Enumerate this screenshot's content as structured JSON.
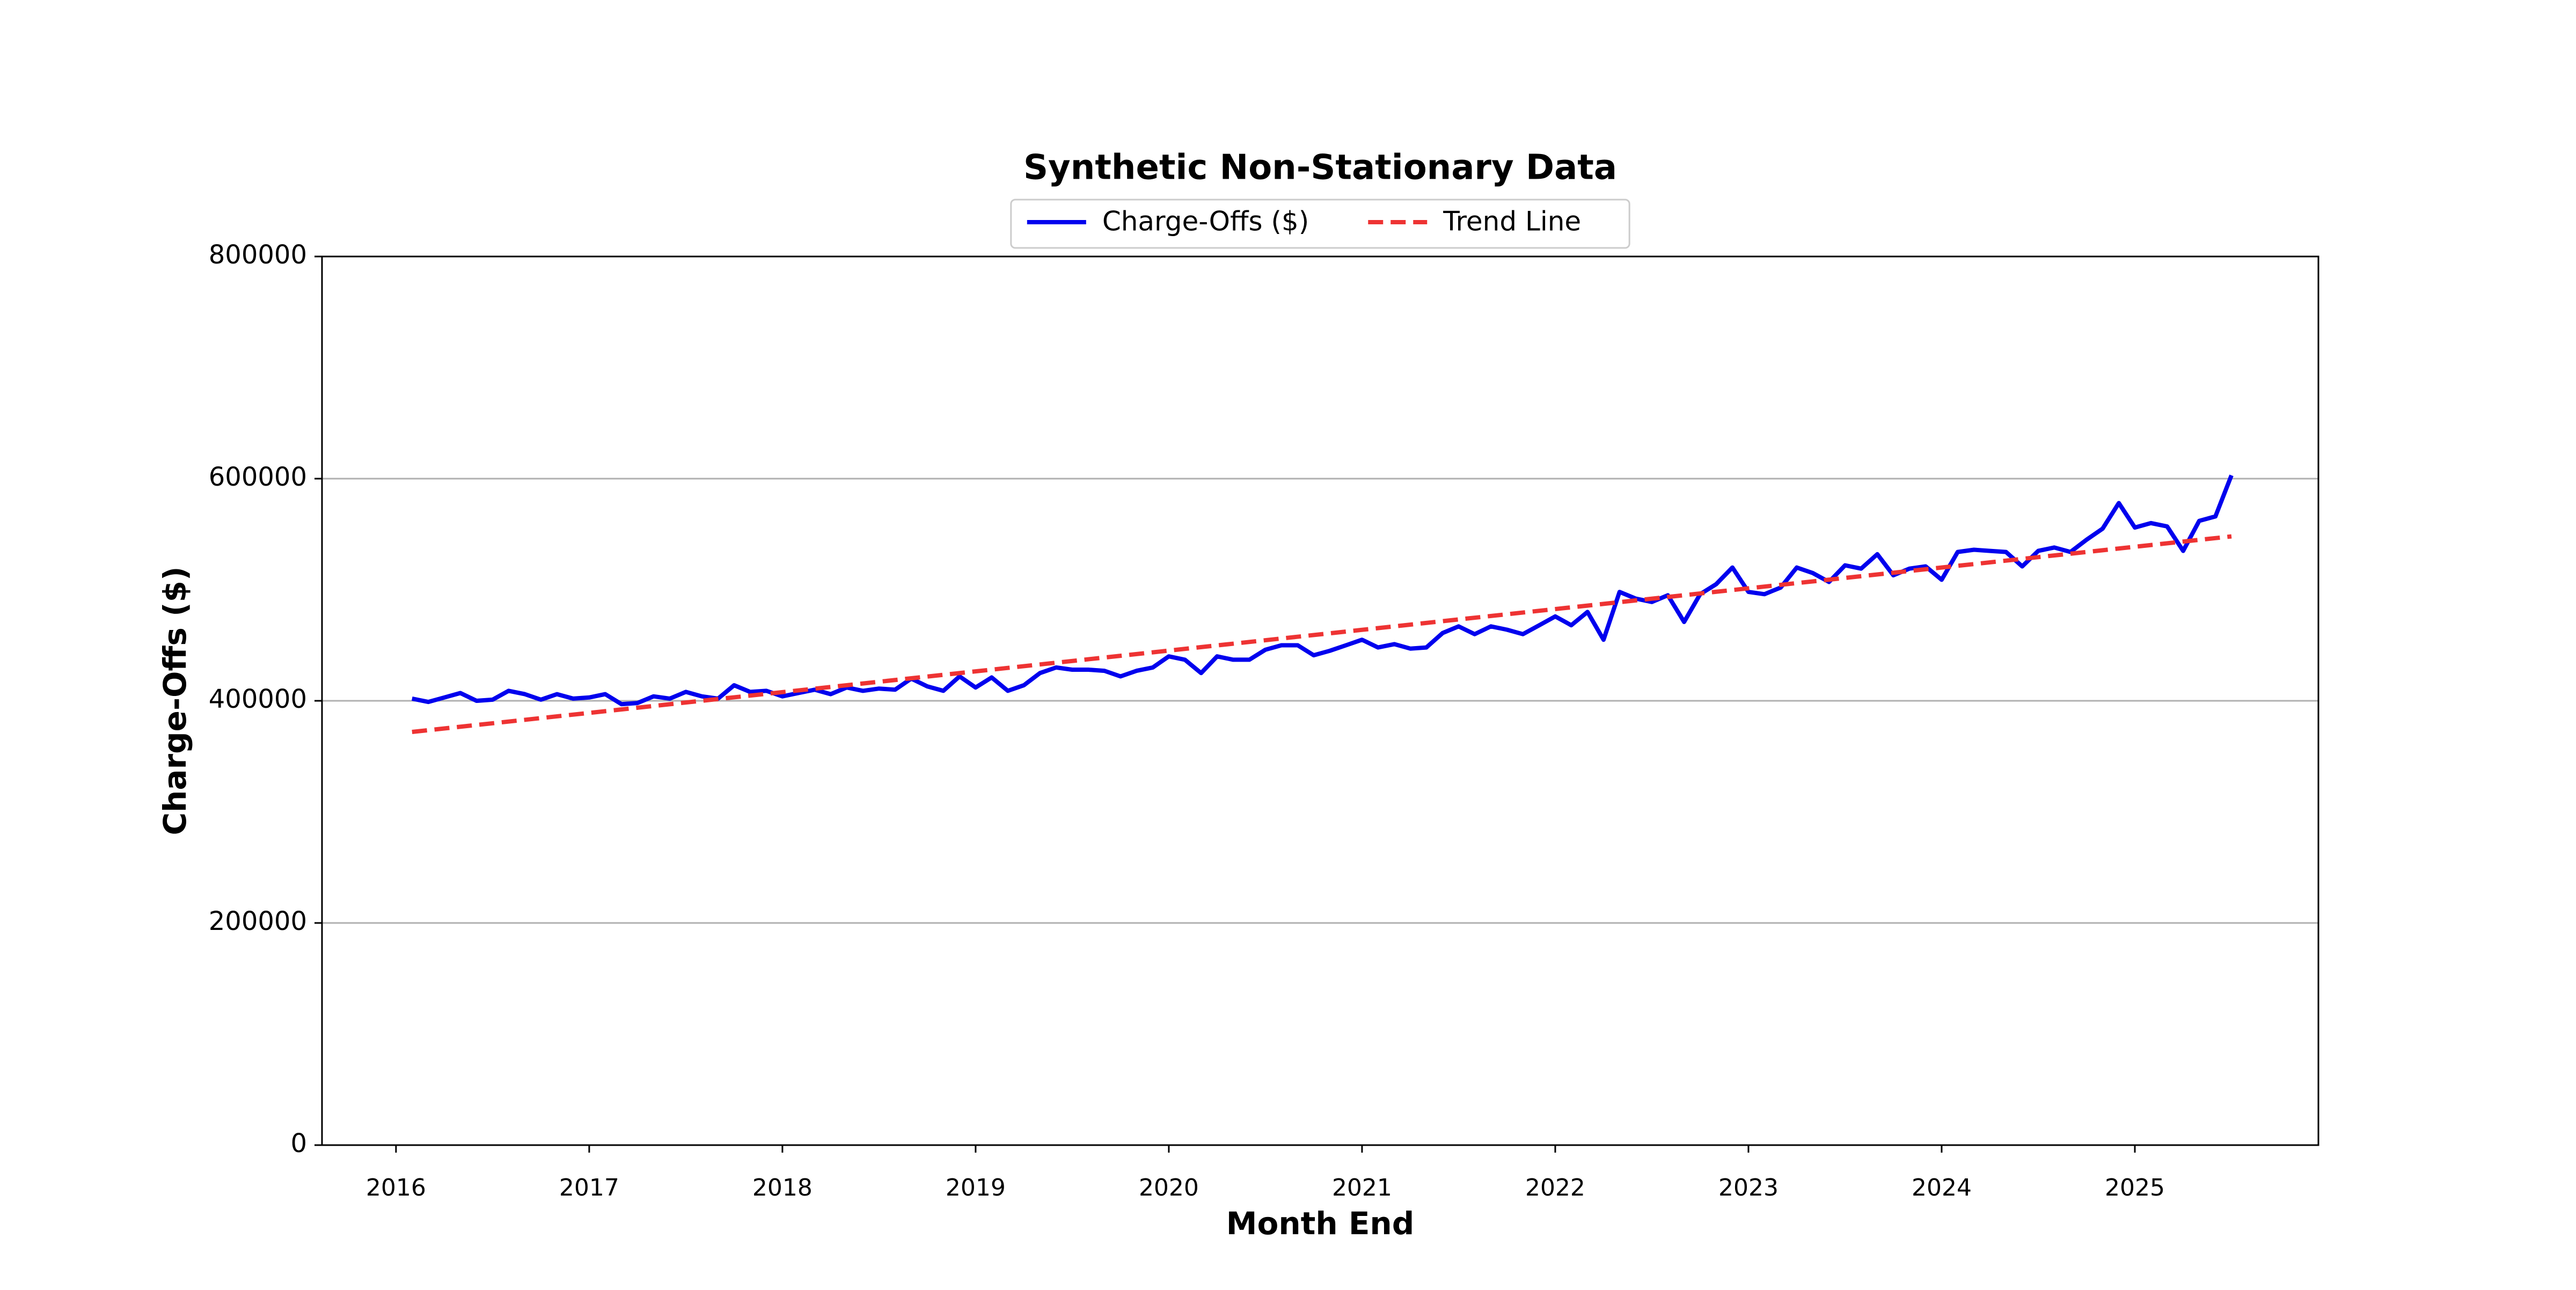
{
  "chart_data": {
    "type": "line",
    "title": "Synthetic Non-Stationary Data",
    "xlabel": "Month End",
    "ylabel": "Charge-Offs ($)",
    "xlim": [
      2015.617,
      2025.95
    ],
    "xticks": [
      2016,
      2017,
      2018,
      2019,
      2020,
      2021,
      2022,
      2023,
      2024,
      2025
    ],
    "ylim": [
      0,
      800000
    ],
    "yticks": [
      0,
      200000,
      400000,
      600000,
      800000
    ],
    "grid": "y",
    "legend": "upper center",
    "x": [
      2016.083,
      2016.167,
      2016.25,
      2016.333,
      2016.417,
      2016.5,
      2016.583,
      2016.667,
      2016.75,
      2016.833,
      2016.917,
      2017.0,
      2017.083,
      2017.167,
      2017.25,
      2017.333,
      2017.417,
      2017.5,
      2017.583,
      2017.667,
      2017.75,
      2017.833,
      2017.917,
      2018.0,
      2018.083,
      2018.167,
      2018.25,
      2018.333,
      2018.417,
      2018.5,
      2018.583,
      2018.667,
      2018.75,
      2018.833,
      2018.917,
      2019.0,
      2019.083,
      2019.167,
      2019.25,
      2019.333,
      2019.417,
      2019.5,
      2019.583,
      2019.667,
      2019.75,
      2019.833,
      2019.917,
      2020.0,
      2020.083,
      2020.167,
      2020.25,
      2020.333,
      2020.417,
      2020.5,
      2020.583,
      2020.667,
      2020.75,
      2020.833,
      2020.917,
      2021.0,
      2021.083,
      2021.167,
      2021.25,
      2021.333,
      2021.417,
      2021.5,
      2021.583,
      2021.667,
      2021.75,
      2021.833,
      2021.917,
      2022.0,
      2022.083,
      2022.167,
      2022.25,
      2022.333,
      2022.417,
      2022.5,
      2022.583,
      2022.667,
      2022.75,
      2022.833,
      2022.917,
      2023.0,
      2023.083,
      2023.167,
      2023.25,
      2023.333,
      2023.417,
      2023.5,
      2023.583,
      2023.667,
      2023.75,
      2023.833,
      2023.917,
      2024.0,
      2024.083,
      2024.167,
      2024.25,
      2024.333,
      2024.417,
      2024.5,
      2024.583,
      2024.667,
      2024.75,
      2024.833,
      2024.917,
      2025.0,
      2025.083,
      2025.167,
      2025.25,
      2025.333,
      2025.417,
      2025.5
    ],
    "series": [
      {
        "name": "Charge-Offs ($)",
        "color": "#0000ee",
        "linestyle": "solid",
        "values": [
          402000,
          399000,
          403000,
          407000,
          400000,
          401000,
          409000,
          406000,
          401000,
          406000,
          402000,
          403000,
          406000,
          397000,
          398000,
          404000,
          402000,
          408000,
          404000,
          402000,
          414000,
          408000,
          409000,
          404000,
          407000,
          410000,
          406000,
          412000,
          409000,
          411000,
          410000,
          420000,
          413000,
          409000,
          422000,
          412000,
          421000,
          409000,
          414000,
          425000,
          430000,
          428000,
          428000,
          427000,
          422000,
          427000,
          430000,
          440000,
          437000,
          425000,
          440000,
          437000,
          437000,
          446000,
          450000,
          450000,
          441000,
          445000,
          450000,
          455000,
          448000,
          451000,
          447000,
          448000,
          461000,
          467000,
          460000,
          467000,
          464000,
          460000,
          468000,
          476000,
          468000,
          480000,
          455000,
          498000,
          492000,
          489000,
          495000,
          471000,
          496000,
          505000,
          520000,
          498000,
          496000,
          502000,
          520000,
          515000,
          507000,
          522000,
          519000,
          532000,
          513000,
          519000,
          521000,
          509000,
          534000,
          536000,
          535000,
          534000,
          521000,
          535000,
          538000,
          534000,
          545000,
          555000,
          578000,
          556000,
          560000,
          557000,
          535000,
          562000,
          566000,
          603000
        ]
      },
      {
        "name": "Trend Line",
        "color": "#ee3333",
        "linestyle": "dashed",
        "x": [
          2016.083,
          2025.5
        ],
        "values": [
          372000,
          548000
        ]
      }
    ]
  }
}
